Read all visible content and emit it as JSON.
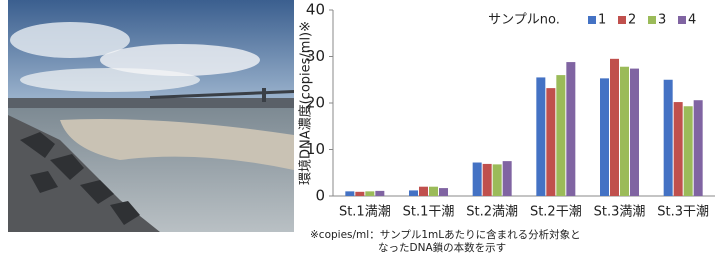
{
  "chart_data": {
    "type": "bar",
    "y_label": "環境DNA濃度(copies/ml)※",
    "legend_title": "サンプルno.",
    "categories": [
      "St.1満潮",
      "St.1干潮",
      "St.2満潮",
      "St.2干潮",
      "St.3満潮",
      "St.3干潮"
    ],
    "series": [
      {
        "name": "1",
        "color": "#4472c4",
        "values": [
          1.0,
          1.2,
          7.2,
          25.5,
          25.3,
          25.0
        ]
      },
      {
        "name": "2",
        "color": "#c0504d",
        "values": [
          0.9,
          2.0,
          6.9,
          23.2,
          29.5,
          20.2
        ]
      },
      {
        "name": "3",
        "color": "#9bbb59",
        "values": [
          1.0,
          2.0,
          6.8,
          26.0,
          27.8,
          19.3
        ]
      },
      {
        "name": "4",
        "color": "#8064a2",
        "values": [
          1.1,
          1.7,
          7.5,
          28.8,
          27.4,
          20.6
        ]
      }
    ],
    "ylim": [
      0,
      40
    ],
    "yticks": [
      0,
      10,
      20,
      30,
      40
    ],
    "grid": false,
    "footnote": [
      "※copies/ml：サンプル1mLあたりに含まれる分析対象と",
      "なったDNA鎖の本数を示す"
    ]
  }
}
